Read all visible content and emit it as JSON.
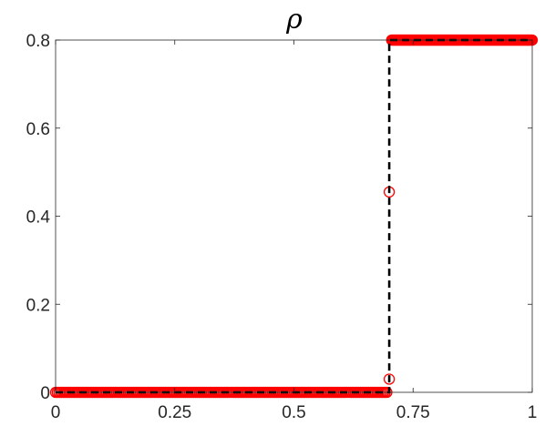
{
  "chart_data": {
    "type": "scatter",
    "title": "ρ",
    "xlabel": "",
    "ylabel": "",
    "xlim": [
      0,
      1
    ],
    "ylim": [
      0,
      0.8
    ],
    "grid": false,
    "x_ticks": [
      {
        "value": 0,
        "label": "0"
      },
      {
        "value": 0.25,
        "label": "0.25"
      },
      {
        "value": 0.5,
        "label": "0.5"
      },
      {
        "value": 0.75,
        "label": "0.75"
      },
      {
        "value": 1,
        "label": "1"
      }
    ],
    "y_ticks": [
      {
        "value": 0,
        "label": "0"
      },
      {
        "value": 0.2,
        "label": "0.2"
      },
      {
        "value": 0.4,
        "label": "0.4"
      },
      {
        "value": 0.6,
        "label": "0.6"
      },
      {
        "value": 0.8,
        "label": "0.8"
      }
    ],
    "series": [
      {
        "style": "circle-markers",
        "color": "#ff0000",
        "segments": [
          {
            "x_start": 0.0,
            "x_end": 0.695,
            "y": 0.0
          },
          {
            "x_start": 0.705,
            "x_end": 1.0,
            "y": 0.8
          }
        ],
        "points": [
          {
            "x": 0.7,
            "y": 0.03
          },
          {
            "x": 0.7,
            "y": 0.455
          }
        ]
      },
      {
        "style": "dashed-line",
        "color": "#000000",
        "x": [
          0.0,
          0.7,
          0.7,
          1.0
        ],
        "y": [
          0.0,
          0.0,
          0.8,
          0.8
        ]
      }
    ]
  }
}
